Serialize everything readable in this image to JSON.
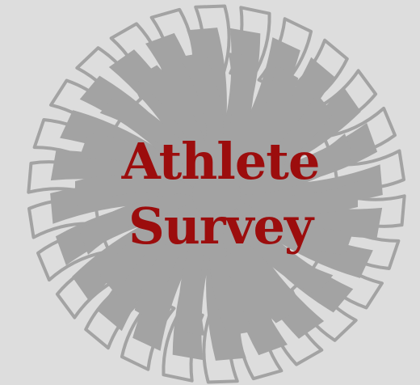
{
  "title": {
    "line1": "Athlete",
    "line2": "Survey"
  },
  "colors": {
    "background": "#dddddd",
    "pompom": "#a3a3a3",
    "title_text": "#9c0d0d"
  },
  "icons": {
    "emblem": "pompom-icon"
  }
}
